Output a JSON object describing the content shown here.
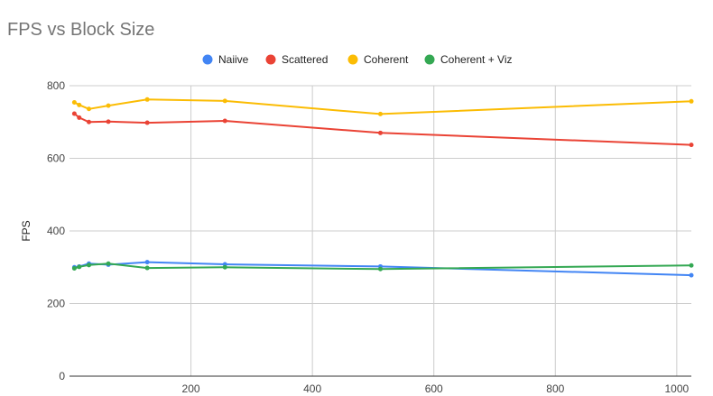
{
  "chart_data": {
    "type": "line",
    "title": "FPS vs Block Size",
    "xlabel": "",
    "ylabel": "FPS",
    "xlim": [
      0,
      1024
    ],
    "ylim": [
      0,
      800
    ],
    "x_ticks": [
      200,
      400,
      600,
      800,
      1000
    ],
    "y_ticks": [
      0,
      200,
      400,
      600,
      800
    ],
    "grid": true,
    "legend_position": "top",
    "x": [
      8,
      16,
      32,
      64,
      128,
      256,
      512,
      1024
    ],
    "series": [
      {
        "name": "Naiive",
        "color": "#4285f4",
        "values": [
          300,
          302,
          310,
          307,
          314,
          308,
          302,
          278
        ]
      },
      {
        "name": "Scattered",
        "color": "#ea4335",
        "values": [
          723,
          712,
          700,
          701,
          698,
          703,
          670,
          637
        ]
      },
      {
        "name": "Coherent",
        "color": "#fbbc04",
        "values": [
          754,
          747,
          736,
          745,
          762,
          758,
          722,
          757
        ]
      },
      {
        "name": "Coherent + Viz",
        "color": "#34a853",
        "values": [
          297,
          301,
          306,
          310,
          298,
          300,
          295,
          305
        ]
      }
    ]
  }
}
